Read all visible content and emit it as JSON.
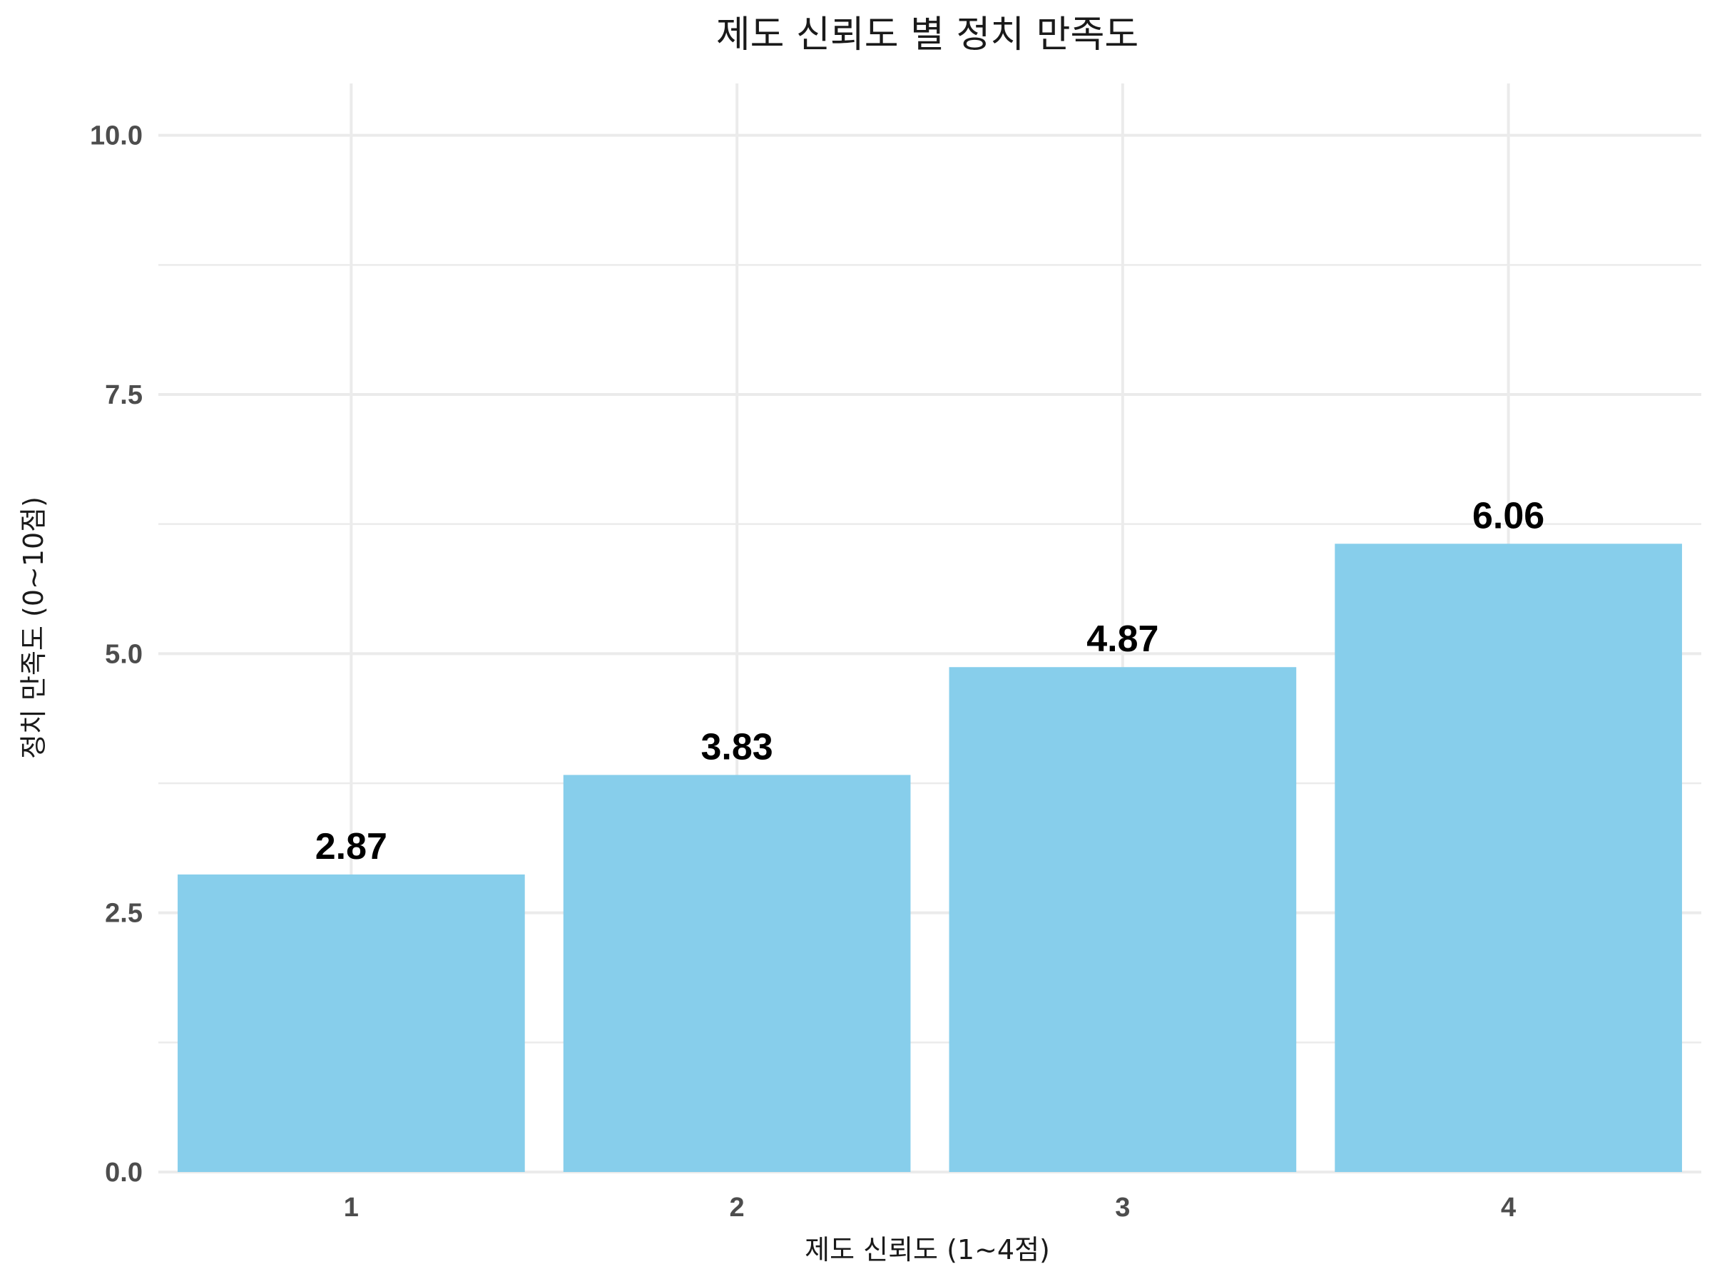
{
  "chart_data": {
    "type": "bar",
    "title": "제도 신뢰도 별 정치 만족도",
    "xlabel": "제도 신뢰도 (1~4점)",
    "ylabel": "정치 만족도 (0~10점)",
    "categories": [
      "1",
      "2",
      "3",
      "4"
    ],
    "values": [
      2.87,
      3.83,
      4.87,
      6.06
    ],
    "value_labels": [
      "2.87",
      "3.83",
      "4.87",
      "6.06"
    ],
    "ylim": [
      0,
      10.5
    ],
    "y_ticks": [
      0,
      2.5,
      5,
      7.5,
      10
    ],
    "y_tick_labels": [
      "0.0",
      "2.5",
      "5.0",
      "7.5",
      "10.0"
    ],
    "grid": true,
    "bar_color": "#87CEEB"
  }
}
